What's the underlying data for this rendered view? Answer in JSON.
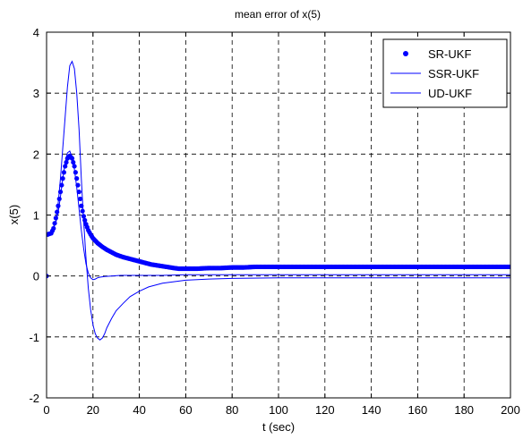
{
  "chart_data": {
    "type": "line",
    "title": "mean error of x(5)",
    "xlabel": "t (sec)",
    "ylabel": "x(5)",
    "xlim": [
      0,
      200
    ],
    "ylim": [
      -2,
      4
    ],
    "x_ticks": [
      0,
      20,
      40,
      60,
      80,
      100,
      120,
      140,
      160,
      180,
      200
    ],
    "y_ticks": [
      -2,
      -1,
      0,
      1,
      2,
      3,
      4
    ],
    "x_tick_labels": [
      "0",
      "20",
      "40",
      "60",
      "80",
      "100",
      "120",
      "140",
      "160",
      "180",
      "200"
    ],
    "y_tick_labels": [
      "-2",
      "-1",
      "0",
      "1",
      "2",
      "3",
      "4"
    ],
    "grid": true,
    "legend_position": "top-right",
    "color": "#0000ff",
    "series": [
      {
        "name": "SR-UKF",
        "style": "markers",
        "x": [
          0,
          0.5,
          1,
          2,
          3,
          4,
          5,
          6,
          7,
          8,
          9,
          10,
          11,
          12,
          13,
          14,
          15,
          16,
          17,
          18,
          19,
          20,
          22,
          24,
          26,
          28,
          30,
          33,
          36,
          40,
          45,
          50,
          55,
          57,
          60,
          65,
          70,
          75,
          80,
          85,
          90,
          100,
          110,
          120,
          130,
          140,
          150,
          160,
          170,
          180,
          190,
          200
        ],
        "y": [
          0,
          0.68,
          0.69,
          0.7,
          0.78,
          0.95,
          1.15,
          1.38,
          1.6,
          1.8,
          1.93,
          1.97,
          1.93,
          1.8,
          1.6,
          1.38,
          1.15,
          0.98,
          0.85,
          0.75,
          0.68,
          0.62,
          0.54,
          0.48,
          0.43,
          0.39,
          0.35,
          0.31,
          0.28,
          0.24,
          0.19,
          0.16,
          0.13,
          0.12,
          0.12,
          0.12,
          0.13,
          0.13,
          0.14,
          0.14,
          0.15,
          0.15,
          0.15,
          0.15,
          0.15,
          0.15,
          0.15,
          0.15,
          0.15,
          0.15,
          0.15,
          0.15
        ]
      },
      {
        "name": "SSR-UKF",
        "style": "line",
        "x": [
          0,
          2,
          4,
          5,
          6,
          7,
          8,
          9,
          10,
          11,
          12,
          13,
          14,
          15,
          16,
          17,
          18,
          19,
          20,
          21,
          22,
          23,
          24,
          25,
          26,
          28,
          30,
          33,
          36,
          40,
          44,
          50,
          60,
          70,
          80,
          100,
          120,
          140,
          160,
          180,
          200
        ],
        "y": [
          0.68,
          0.72,
          0.9,
          1.2,
          1.6,
          2.1,
          2.6,
          3.1,
          3.45,
          3.52,
          3.4,
          3.0,
          2.4,
          1.6,
          0.9,
          0.3,
          -0.2,
          -0.55,
          -0.8,
          -0.95,
          -1.02,
          -1.05,
          -1.02,
          -0.95,
          -0.85,
          -0.7,
          -0.57,
          -0.45,
          -0.34,
          -0.25,
          -0.18,
          -0.12,
          -0.07,
          -0.05,
          -0.04,
          -0.03,
          -0.03,
          -0.03,
          -0.03,
          -0.03,
          -0.03
        ]
      },
      {
        "name": "UD-UKF",
        "style": "line",
        "x": [
          0,
          2,
          4,
          5,
          6,
          7,
          8,
          9,
          10,
          11,
          12,
          13,
          14,
          15,
          16,
          17,
          18,
          19,
          20,
          21,
          22,
          23,
          25,
          28,
          32,
          40,
          50,
          60,
          80,
          100,
          120,
          140,
          160,
          180,
          200
        ],
        "y": [
          0.68,
          0.7,
          0.88,
          1.05,
          1.3,
          1.6,
          1.85,
          2.02,
          2.05,
          1.95,
          1.75,
          1.45,
          1.1,
          0.75,
          0.45,
          0.2,
          0.05,
          -0.03,
          -0.06,
          -0.05,
          -0.03,
          -0.02,
          -0.01,
          0.0,
          0.01,
          0.01,
          0.01,
          0.02,
          0.02,
          0.02,
          0.02,
          0.02,
          0.02,
          0.02,
          0.02
        ]
      }
    ]
  }
}
